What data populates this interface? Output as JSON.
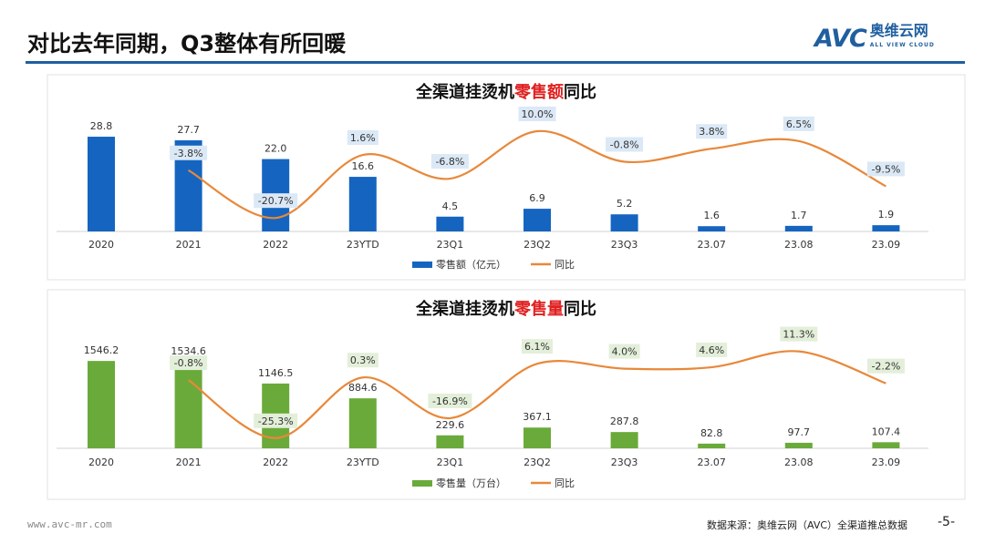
{
  "header": {
    "title": "对比去年同期，Q3整体有所回暖",
    "logo_text": "AVC",
    "logo_cn": "奥维云网",
    "logo_en": "ALL VIEW CLOUD"
  },
  "footer": {
    "url": "www.avc-mr.com",
    "source": "数据来源：奥维云网（AVC）全渠道推总数据",
    "page": "-5-"
  },
  "chart_data": [
    {
      "type": "bar+line",
      "title_pre": "全渠道挂烫机",
      "title_hi": "零售额",
      "title_post": "同比",
      "categories": [
        "2020",
        "2021",
        "2022",
        "23YTD",
        "23Q1",
        "23Q2",
        "23Q3",
        "23.07",
        "23.08",
        "23.09"
      ],
      "series": [
        {
          "name": "零售额（亿元）",
          "type": "bar",
          "color": "#1565c0",
          "values": [
            28.8,
            27.7,
            22.0,
            16.6,
            4.5,
            6.9,
            5.2,
            1.6,
            1.7,
            1.9
          ]
        },
        {
          "name": "同比",
          "type": "line",
          "color": "#e8883a",
          "unit": "%",
          "values": [
            null,
            -3.8,
            -20.7,
            1.6,
            -6.8,
            10.0,
            -0.8,
            3.8,
            6.5,
            -9.5
          ]
        }
      ],
      "label_bg": "#dbe8f6",
      "legend": "bottom"
    },
    {
      "type": "bar+line",
      "title_pre": "全渠道挂烫机",
      "title_hi": "零售量",
      "title_post": "同比",
      "categories": [
        "2020",
        "2021",
        "2022",
        "23YTD",
        "23Q1",
        "23Q2",
        "23Q3",
        "23.07",
        "23.08",
        "23.09"
      ],
      "series": [
        {
          "name": "零售量（万台）",
          "type": "bar",
          "color": "#6aaa3a",
          "values": [
            1546.2,
            1534.6,
            1146.5,
            884.6,
            229.6,
            367.1,
            287.8,
            82.8,
            97.7,
            107.4
          ]
        },
        {
          "name": "同比",
          "type": "line",
          "color": "#e8883a",
          "unit": "%",
          "values": [
            null,
            -0.8,
            -25.3,
            0.3,
            -16.9,
            6.1,
            4.0,
            4.6,
            11.3,
            -2.2
          ]
        }
      ],
      "label_bg": "#e3efd9",
      "legend": "bottom"
    }
  ]
}
